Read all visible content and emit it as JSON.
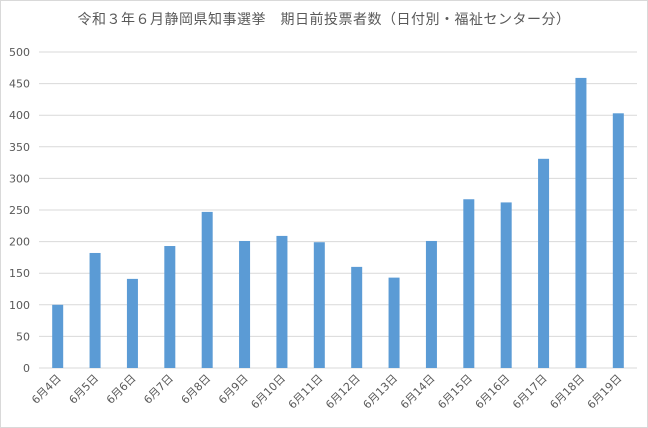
{
  "chart_data": {
    "type": "bar",
    "title": "令和３年６月静岡県知事選挙　期日前投票者数（日付別・福祉センター分）",
    "categories": [
      "6月4日",
      "6月5日",
      "6月6日",
      "6月7日",
      "6月8日",
      "6月9日",
      "6月10日",
      "6月11日",
      "6月12日",
      "6月13日",
      "6月14日",
      "6月15日",
      "6月16日",
      "6月17日",
      "6月18日",
      "6月19日"
    ],
    "values": [
      100,
      182,
      141,
      193,
      247,
      201,
      209,
      199,
      160,
      143,
      201,
      267,
      262,
      331,
      459,
      403
    ],
    "xlabel": "",
    "ylabel": "",
    "ylim": [
      0,
      500
    ],
    "yticks": [
      0,
      50,
      100,
      150,
      200,
      250,
      300,
      350,
      400,
      450,
      500
    ],
    "grid": true,
    "legend": "none",
    "bar_color": "#5b9bd5",
    "grid_color": "#d9d9d9"
  }
}
